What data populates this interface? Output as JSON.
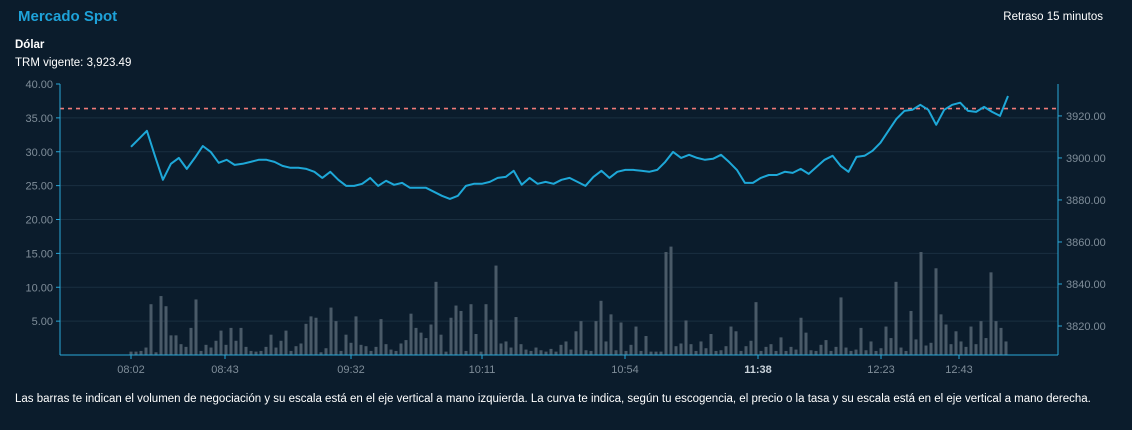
{
  "header": {
    "title": "Mercado Spot",
    "delay": "Retraso 15 minutos",
    "asset": "Dólar",
    "trm": "TRM vigente: 3,923.49"
  },
  "footer": {
    "note": "Las barras te indican el volumen de negociación y su escala está en el eje vertical a mano izquierda. La curva te indica, según tu escogencia, el precio o la tasa y su escala está en el eje vertical a mano derecha."
  },
  "colors": {
    "background": "#0b1c2c",
    "line": "#1ea8d8",
    "bars": "#4a5a68",
    "reference": "#f07a78",
    "axis": "#2aa8d8"
  },
  "chart_data": {
    "type": "bar+line",
    "x_tick_labels": [
      "08:02",
      "08:43",
      "09:32",
      "10:11",
      "10:54",
      "11:38",
      "12:23",
      "12:43"
    ],
    "x_tick_bold": "11:38",
    "left_axis": {
      "ylim": [
        0,
        40
      ],
      "ticks": [
        "5.00",
        "10.00",
        "15.00",
        "20.00",
        "25.00",
        "30.00",
        "35.00",
        "40.00"
      ]
    },
    "right_axis": {
      "ylim": [
        3806.2,
        3935.2
      ],
      "ticks": [
        "3820.00",
        "3840.00",
        "3860.00",
        "3880.00",
        "3900.00",
        "3920.00"
      ]
    },
    "reference_line": {
      "value": 3923.49,
      "style": "dashed"
    },
    "grid": true,
    "volume": [
      0.5,
      0.5,
      0.6,
      1.1,
      7.5,
      0.4,
      8.7,
      7.2,
      2.9,
      2.9,
      1.6,
      1.2,
      4.0,
      8.2,
      0.6,
      1.5,
      1.1,
      2.1,
      3.6,
      1.5,
      4.0,
      2.1,
      4.0,
      1.2,
      0.6,
      0.5,
      0.6,
      1.2,
      3.0,
      1.1,
      2.1,
      3.6,
      0.6,
      1.3,
      1.7,
      4.6,
      5.7,
      5.5,
      0.4,
      1.0,
      7.0,
      5.0,
      0.6,
      3.0,
      1.8,
      5.7,
      1.5,
      1.3,
      0.6,
      1.2,
      5.3,
      1.6,
      0.8,
      0.6,
      1.7,
      2.2,
      6.1,
      4.0,
      3.3,
      2.5,
      4.5,
      10.8,
      3.0,
      0.5,
      5.5,
      7.3,
      6.5,
      0.6,
      7.5,
      3.1,
      0.5,
      7.5,
      5.2,
      13.2,
      1.7,
      2.0,
      1.1,
      5.6,
      1.6,
      0.8,
      0.6,
      1.1,
      0.7,
      0.5,
      0.9,
      0.5,
      1.5,
      2.0,
      0.8,
      3.5,
      5.0,
      0.7,
      0.6,
      5.0,
      8.0,
      2.0,
      6.0,
      0.7,
      4.8,
      0.6,
      1.5,
      4.2,
      0.6,
      2.8,
      0.5,
      0.5,
      0.5,
      15.2,
      16.0,
      1.3,
      1.7,
      5.1,
      1.6,
      0.6,
      2.0,
      1.0,
      3.1,
      0.6,
      0.7,
      1.3,
      4.2,
      3.5,
      0.6,
      1.3,
      2.1,
      7.8,
      0.6,
      1.2,
      1.6,
      0.6,
      2.6,
      0.6,
      1.2,
      0.8,
      5.5,
      3.3,
      0.7,
      0.6,
      1.5,
      2.2,
      0.6,
      1.2,
      8.5,
      1.1,
      0.6,
      0.8,
      4.0,
      0.7,
      2.0,
      0.6,
      1.0,
      4.2,
      2.5,
      10.8,
      1.1,
      0.6,
      6.5,
      2.3,
      15.2,
      1.4,
      1.8,
      12.8,
      6.0,
      4.5,
      1.6,
      3.5,
      2.0,
      1.2,
      4.2,
      1.6,
      5.0,
      2.5,
      12.2,
      5.0,
      4.0,
      2.0
    ],
    "price": [
      3905.3,
      3909.1,
      3912.9,
      3901.0,
      3889.6,
      3897.2,
      3900.0,
      3894.8,
      3900.0,
      3905.7,
      3902.9,
      3897.7,
      3899.1,
      3896.7,
      3897.2,
      3898.1,
      3899.1,
      3899.1,
      3898.1,
      3896.2,
      3895.3,
      3895.3,
      3894.8,
      3893.4,
      3890.5,
      3893.4,
      3889.6,
      3886.7,
      3886.7,
      3887.7,
      3890.5,
      3886.7,
      3889.1,
      3887.2,
      3888.1,
      3885.8,
      3885.8,
      3885.8,
      3883.9,
      3882.0,
      3880.5,
      3882.0,
      3886.7,
      3887.7,
      3887.7,
      3888.6,
      3890.5,
      3891.0,
      3893.9,
      3887.2,
      3890.5,
      3887.7,
      3888.6,
      3887.7,
      3889.6,
      3890.5,
      3888.6,
      3886.7,
      3891.0,
      3893.9,
      3890.5,
      3893.4,
      3894.3,
      3894.3,
      3893.9,
      3893.4,
      3894.3,
      3898.1,
      3902.9,
      3900.0,
      3901.5,
      3900.0,
      3899.1,
      3899.6,
      3901.5,
      3898.1,
      3894.3,
      3888.1,
      3888.1,
      3890.5,
      3891.9,
      3891.9,
      3893.4,
      3892.9,
      3894.8,
      3892.4,
      3895.8,
      3899.1,
      3901.0,
      3896.2,
      3893.4,
      3900.5,
      3901.0,
      3903.4,
      3907.2,
      3912.9,
      3918.6,
      3922.4,
      3922.9,
      3925.3,
      3922.9,
      3915.8,
      3922.9,
      3925.3,
      3926.3,
      3922.4,
      3921.9,
      3924.3,
      3921.9,
      3920.0,
      3929.5
    ]
  }
}
